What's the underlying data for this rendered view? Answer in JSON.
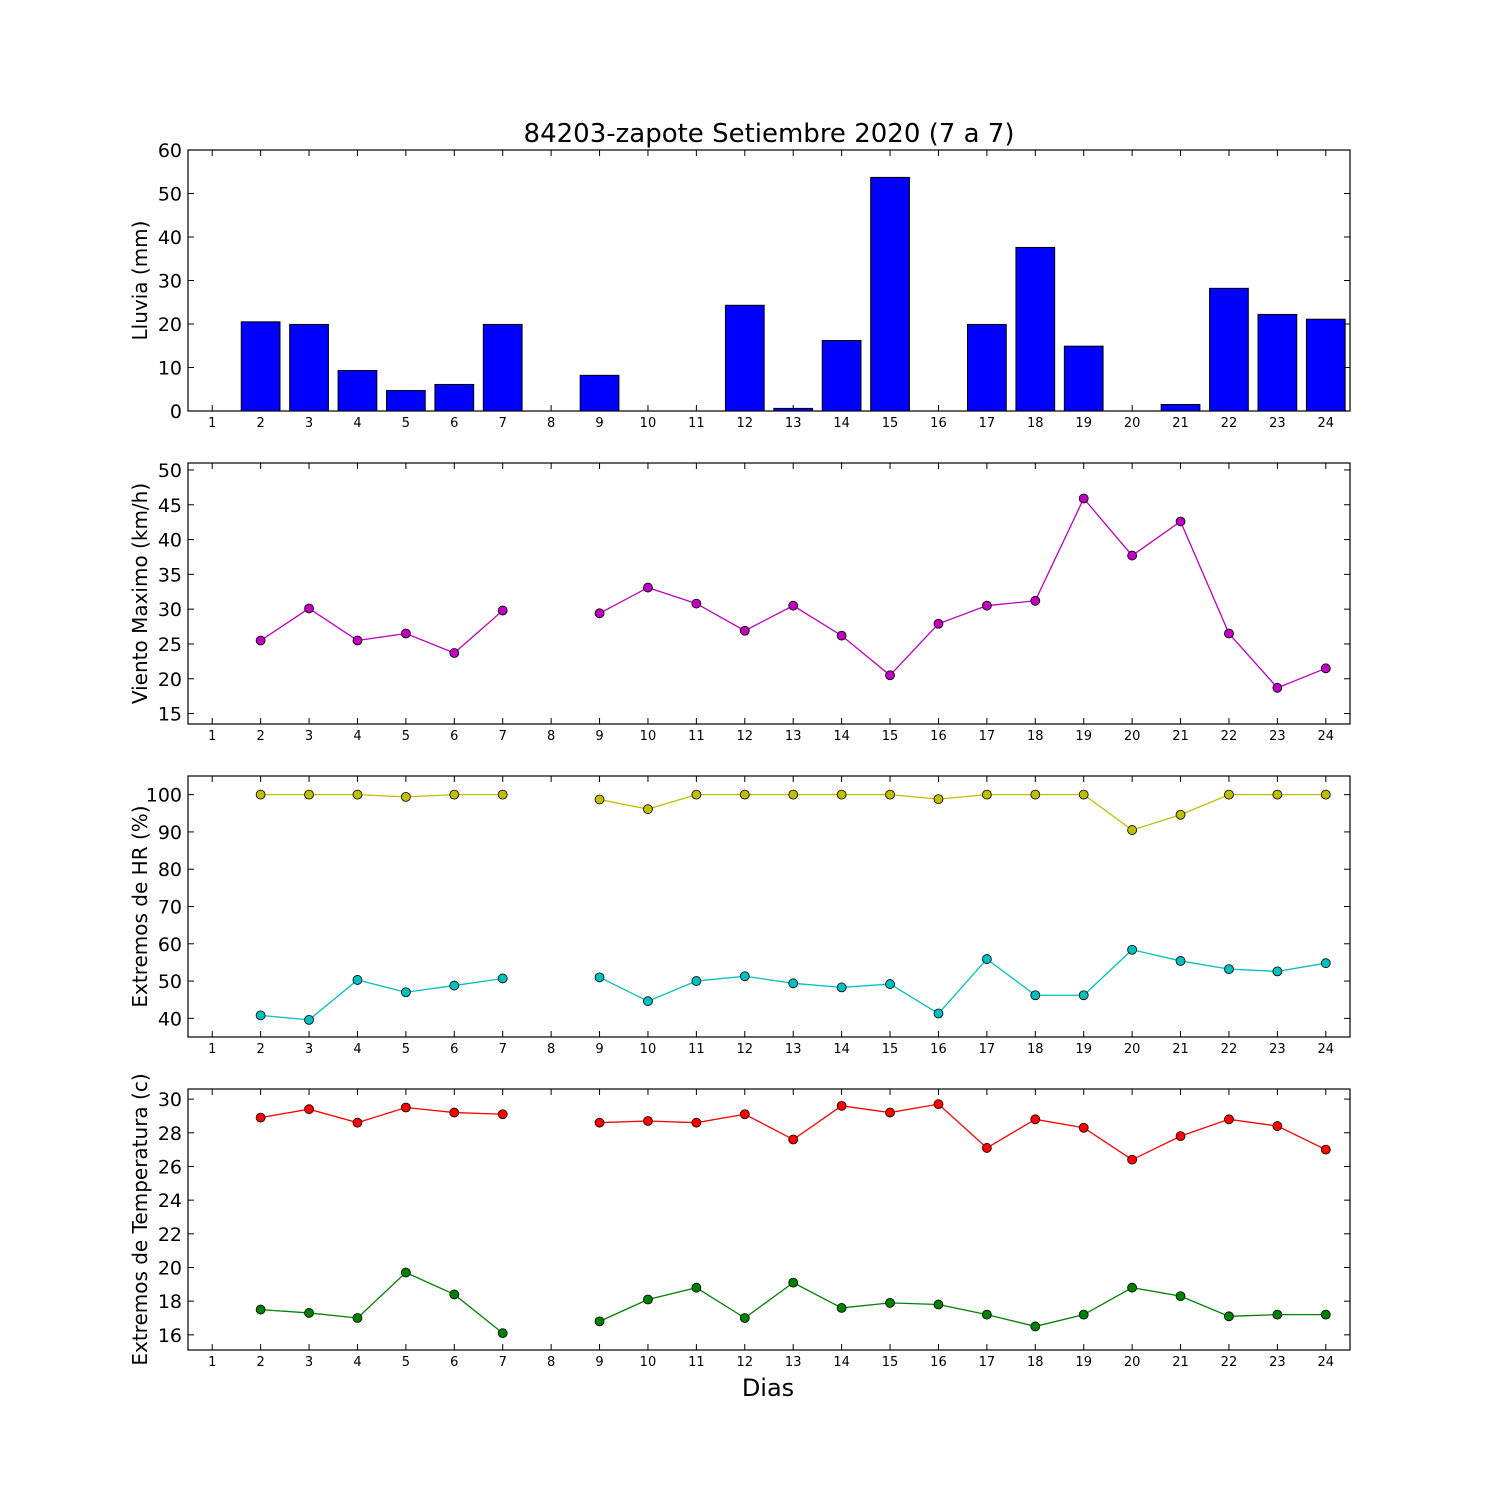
{
  "figure": {
    "title": "84203-zapote Setiembre 2020  (7 a 7)",
    "xlabel": "Dias"
  },
  "chart_data": [
    {
      "type": "bar",
      "ylabel": "Lluvia (mm)",
      "ylim": [
        0,
        60
      ],
      "yticks": [
        0,
        10,
        20,
        30,
        40,
        50,
        60
      ],
      "categories": [
        "1",
        "2",
        "3",
        "4",
        "5",
        "6",
        "7",
        "8",
        "9",
        "10",
        "11",
        "12",
        "13",
        "14",
        "15",
        "16",
        "17",
        "18",
        "19",
        "20",
        "21",
        "22",
        "23",
        "24"
      ],
      "series": [
        {
          "color": "#0000ff",
          "values": [
            null,
            20.5,
            19.9,
            9.3,
            4.7,
            6.1,
            19.9,
            null,
            8.2,
            0,
            0,
            24.3,
            0.6,
            16.2,
            53.7,
            0,
            19.9,
            37.6,
            14.9,
            0,
            1.5,
            28.2,
            22.2,
            21.1
          ]
        }
      ],
      "grid": false
    },
    {
      "type": "line",
      "ylabel": "Viento Maximo (km/h)",
      "ylim": [
        13.5,
        51
      ],
      "yticks": [
        15,
        20,
        25,
        30,
        35,
        40,
        45,
        50
      ],
      "categories": [
        "1",
        "2",
        "3",
        "4",
        "5",
        "6",
        "7",
        "8",
        "9",
        "10",
        "11",
        "12",
        "13",
        "14",
        "15",
        "16",
        "17",
        "18",
        "19",
        "20",
        "21",
        "22",
        "23",
        "24"
      ],
      "series": [
        {
          "color": "#bf00bf",
          "values": [
            null,
            25.5,
            30.1,
            25.5,
            26.5,
            23.7,
            29.8,
            null,
            29.4,
            33.1,
            30.8,
            26.9,
            30.5,
            26.2,
            20.5,
            27.9,
            30.5,
            31.2,
            45.9,
            37.7,
            42.6,
            26.5,
            18.7,
            21.5
          ]
        }
      ],
      "grid": false
    },
    {
      "type": "line",
      "ylabel": "Extremos de HR (%)",
      "ylim": [
        35,
        105
      ],
      "yticks": [
        40,
        50,
        60,
        70,
        80,
        90,
        100
      ],
      "categories": [
        "1",
        "2",
        "3",
        "4",
        "5",
        "6",
        "7",
        "8",
        "9",
        "10",
        "11",
        "12",
        "13",
        "14",
        "15",
        "16",
        "17",
        "18",
        "19",
        "20",
        "21",
        "22",
        "23",
        "24"
      ],
      "series": [
        {
          "color": "#bfbf00",
          "values": [
            null,
            100,
            100,
            100,
            99.4,
            100,
            100,
            null,
            98.7,
            96.1,
            100,
            100,
            100,
            100,
            100,
            98.8,
            100,
            100,
            100,
            90.5,
            94.6,
            100,
            100,
            100
          ]
        },
        {
          "color": "#00bfbf",
          "values": [
            null,
            40.8,
            39.6,
            50.3,
            47,
            48.8,
            50.7,
            null,
            51.0,
            44.6,
            50,
            51.3,
            49.4,
            48.3,
            49.2,
            41.3,
            55.9,
            46.2,
            46.2,
            58.4,
            55.4,
            53.2,
            52.6,
            54.8
          ]
        }
      ],
      "grid": false
    },
    {
      "type": "line",
      "ylabel": "Extremos de Temperatura (c)",
      "ylim": [
        15.1,
        30.6
      ],
      "yticks": [
        16,
        18,
        20,
        22,
        24,
        26,
        28,
        30
      ],
      "categories": [
        "1",
        "2",
        "3",
        "4",
        "5",
        "6",
        "7",
        "8",
        "9",
        "10",
        "11",
        "12",
        "13",
        "14",
        "15",
        "16",
        "17",
        "18",
        "19",
        "20",
        "21",
        "22",
        "23",
        "24"
      ],
      "series": [
        {
          "color": "#ff0000",
          "values": [
            null,
            28.9,
            29.4,
            28.6,
            29.5,
            29.2,
            29.1,
            null,
            28.6,
            28.7,
            28.6,
            29.1,
            27.6,
            29.6,
            29.2,
            29.7,
            27.1,
            28.8,
            28.3,
            26.4,
            27.8,
            28.8,
            28.4,
            27.0
          ]
        },
        {
          "color": "#008000",
          "values": [
            null,
            17.5,
            17.3,
            17.0,
            19.7,
            18.4,
            16.1,
            null,
            16.8,
            18.1,
            18.8,
            17.0,
            19.1,
            17.6,
            17.9,
            17.8,
            17.2,
            16.5,
            17.2,
            18.8,
            18.3,
            17.1,
            17.2,
            17.2
          ]
        }
      ],
      "grid": false
    }
  ]
}
